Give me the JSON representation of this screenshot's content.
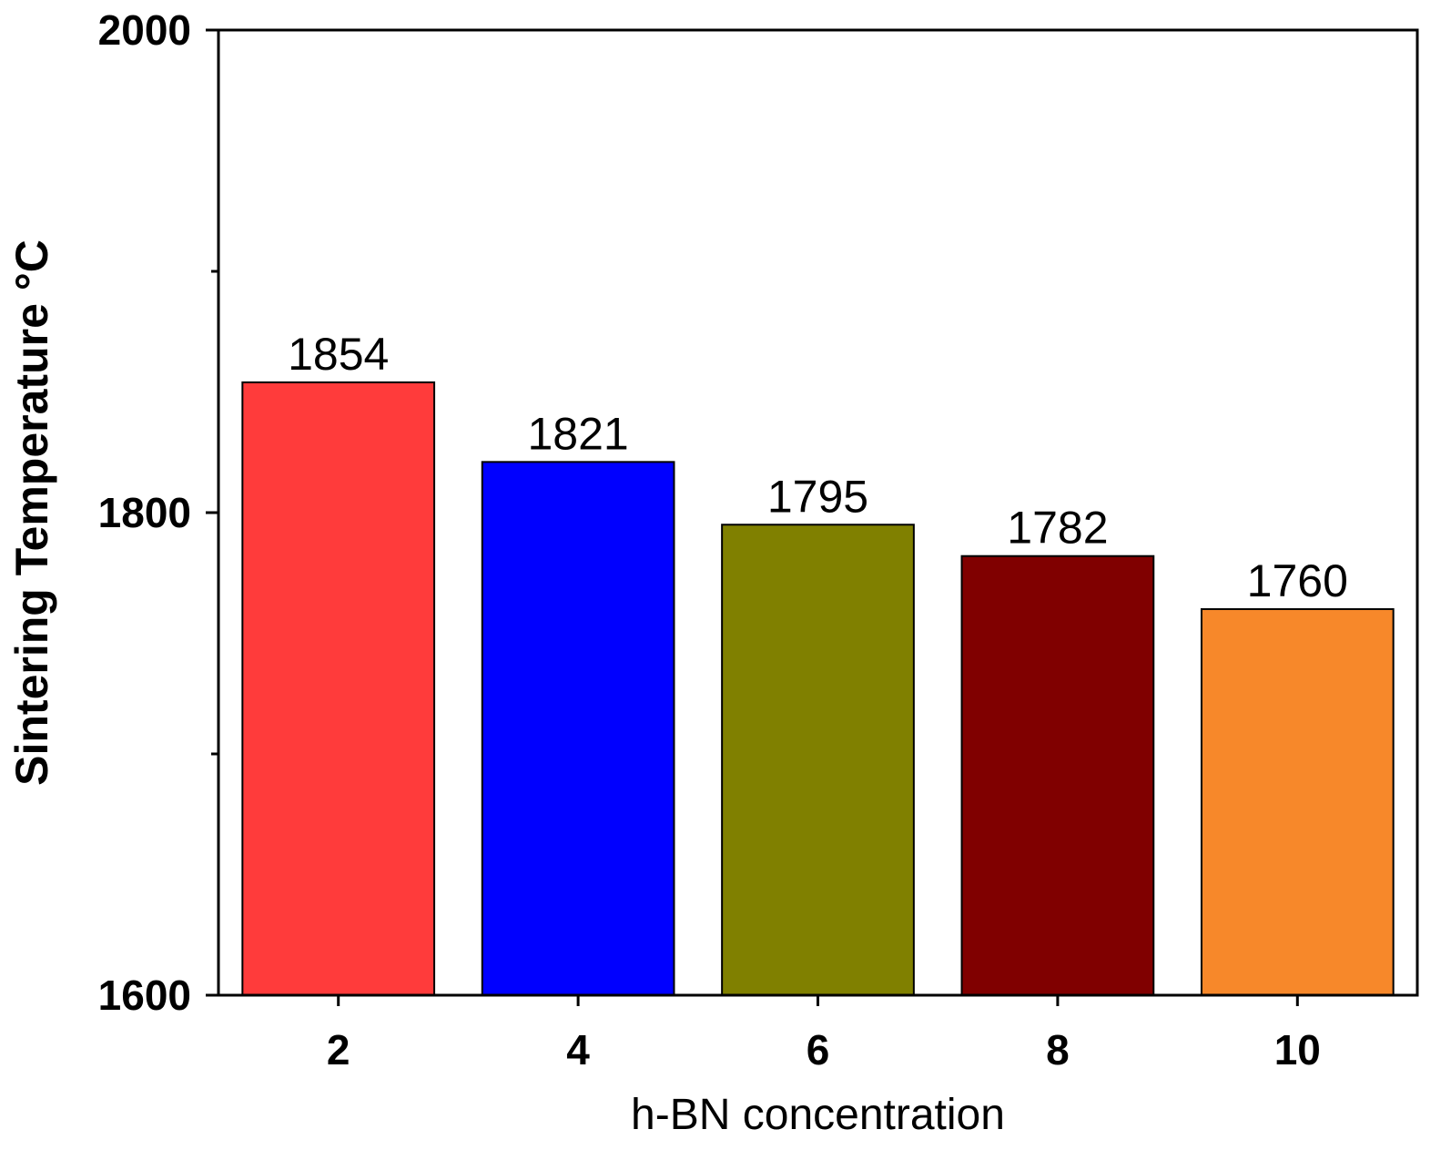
{
  "chart_data": {
    "type": "bar",
    "title": "",
    "xlabel": "h-BN concentration",
    "ylabel": "Sintering Temperature °C",
    "categories": [
      "2",
      "4",
      "6",
      "8",
      "10"
    ],
    "values": [
      1854,
      1821,
      1795,
      1782,
      1760
    ],
    "data_labels": [
      "1854",
      "1821",
      "1795",
      "1782",
      "1760"
    ],
    "colors": [
      "#FF3B3B",
      "#0000FF",
      "#808000",
      "#800000",
      "#F7882A"
    ],
    "ylim": [
      1600,
      2000
    ],
    "yticks_major": [
      1600,
      1800,
      2000
    ],
    "ytick_labels": [
      "1600",
      "1800",
      "2000"
    ],
    "yticks_minor": [
      1700,
      1900
    ],
    "grid": false,
    "legend": "none"
  }
}
